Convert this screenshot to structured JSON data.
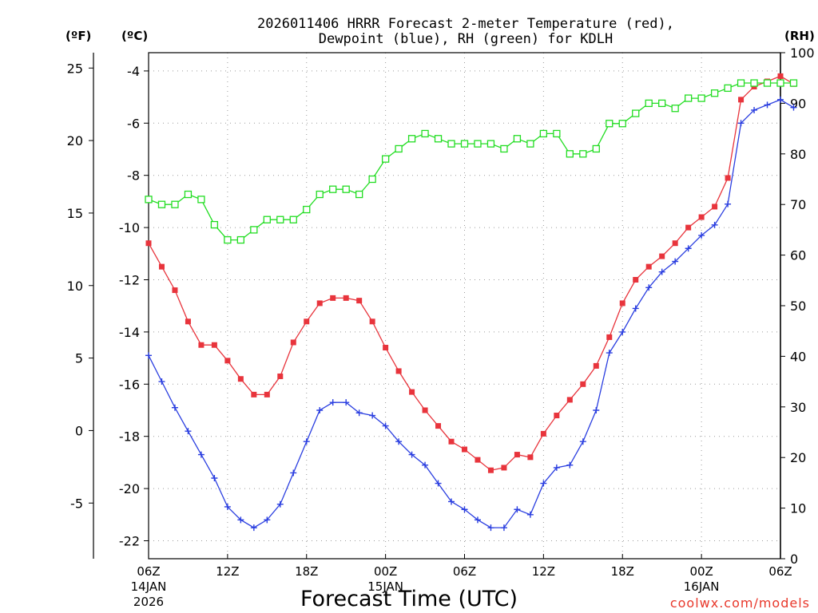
{
  "chart_data": {
    "type": "line",
    "title_line1": "2026011406 HRRR Forecast 2-meter Temperature (red),",
    "title_line2": "Dewpoint (blue), RH (green) for KDLH",
    "xlabel": "Forecast Time (UTC)",
    "credit": "coolwx.com/models",
    "units": {
      "fahrenheit": "(ºF)",
      "celsius": "(ºC)",
      "rh": "(RH)"
    },
    "x_range_hours": [
      0,
      48
    ],
    "x_ticks": [
      {
        "hour": 0,
        "label": "06Z",
        "date1": "14JAN",
        "date2": "2026"
      },
      {
        "hour": 6,
        "label": "12Z"
      },
      {
        "hour": 12,
        "label": "18Z"
      },
      {
        "hour": 18,
        "label": "00Z",
        "date1": "15JAN"
      },
      {
        "hour": 24,
        "label": "06Z"
      },
      {
        "hour": 30,
        "label": "12Z"
      },
      {
        "hour": 36,
        "label": "18Z"
      },
      {
        "hour": 42,
        "label": "00Z",
        "date1": "16JAN"
      },
      {
        "hour": 48,
        "label": "06Z"
      }
    ],
    "celsius_axis": {
      "range": [
        -22.8,
        -3.5
      ],
      "ticks": [
        "-4",
        "-6",
        "-8",
        "-10",
        "-12",
        "-14",
        "-16",
        "-18",
        "-20",
        "-22"
      ]
    },
    "fahrenheit_axis": {
      "ticks": [
        "25",
        "20",
        "15",
        "10",
        "5",
        "0",
        "-5"
      ]
    },
    "rh_axis": {
      "range": [
        0,
        100
      ],
      "ticks": [
        "0",
        "10",
        "20",
        "30",
        "40",
        "50",
        "60",
        "70",
        "80",
        "90",
        "100"
      ]
    },
    "series": [
      {
        "name": "Temperature",
        "axis": "celsius",
        "color": "#e8343c",
        "marker": "filled-square",
        "values": [
          -10.6,
          -11.5,
          -12.4,
          -13.6,
          -14.5,
          -14.5,
          -15.1,
          -15.8,
          -16.4,
          -16.4,
          -15.7,
          -14.4,
          -13.6,
          -12.9,
          -12.7,
          -12.7,
          -12.8,
          -13.6,
          -14.6,
          -15.5,
          -16.3,
          -17.0,
          -17.6,
          -18.2,
          -18.5,
          -18.9,
          -19.3,
          -19.2,
          -18.7,
          -18.8,
          -17.9,
          -17.2,
          -16.6,
          -16.0,
          -15.3,
          -14.2,
          -12.9,
          -12.0,
          -11.5,
          -11.1,
          -10.6,
          -10.0,
          -9.6,
          -9.2,
          -8.1,
          -5.1,
          -4.6,
          -4.4,
          -4.2,
          -4.5
        ]
      },
      {
        "name": "Dewpoint",
        "axis": "celsius",
        "color": "#2a3ee0",
        "marker": "plus",
        "values": [
          -14.9,
          -15.9,
          -16.9,
          -17.8,
          -18.7,
          -19.6,
          -20.7,
          -21.2,
          -21.5,
          -21.2,
          -20.6,
          -19.4,
          -18.2,
          -17.0,
          -16.7,
          -16.7,
          -17.1,
          -17.2,
          -17.6,
          -18.2,
          -18.7,
          -19.1,
          -19.8,
          -20.5,
          -20.8,
          -21.2,
          -21.5,
          -21.5,
          -20.8,
          -21.0,
          -19.8,
          -19.2,
          -19.1,
          -18.2,
          -17.0,
          -14.8,
          -14.0,
          -13.1,
          -12.3,
          -11.7,
          -11.3,
          -10.8,
          -10.3,
          -9.9,
          -9.1,
          -6.0,
          -5.5,
          -5.3,
          -5.1,
          -5.4
        ]
      },
      {
        "name": "RH",
        "axis": "rh",
        "color": "#22dd22",
        "marker": "open-square",
        "values": [
          71,
          70,
          70,
          72,
          71,
          66,
          63,
          63,
          65,
          67,
          67,
          67,
          69,
          72,
          73,
          73,
          72,
          75,
          79,
          81,
          83,
          84,
          83,
          82,
          82,
          82,
          82,
          81,
          83,
          82,
          84,
          84,
          80,
          80,
          81,
          86,
          86,
          88,
          90,
          90,
          89,
          91,
          91,
          92,
          93,
          94,
          94,
          94,
          94,
          94
        ]
      }
    ]
  }
}
